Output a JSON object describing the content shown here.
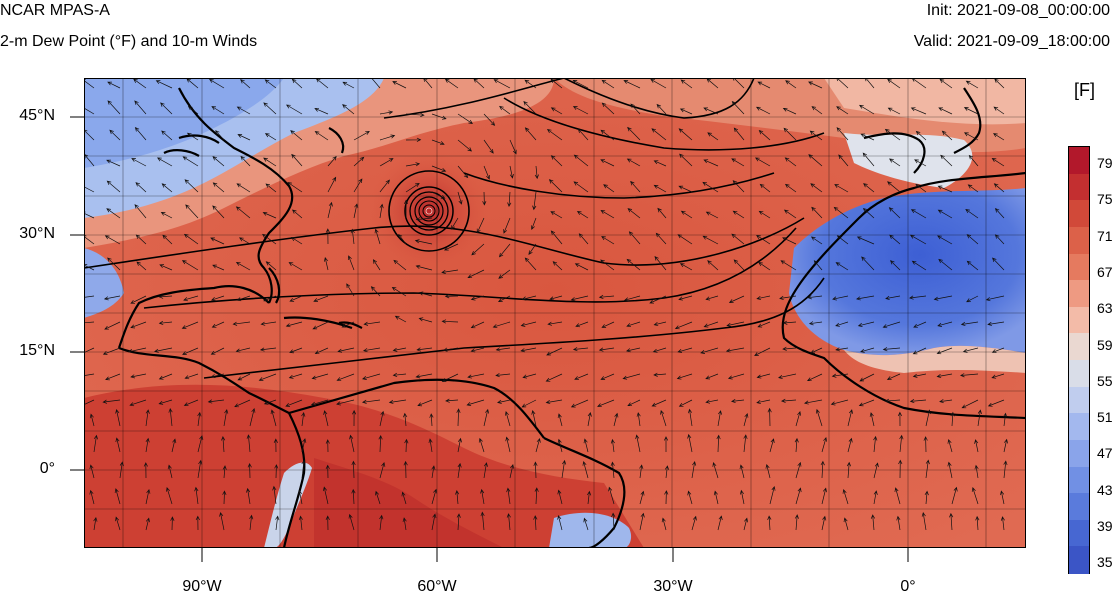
{
  "header": {
    "title": "NCAR MPAS-A",
    "subtitle": "2-m Dew Point (°F) and 10-m Winds",
    "init": "Init: 2021-09-08_00:00:00",
    "valid": "Valid: 2021-09-09_18:00:00"
  },
  "map": {
    "lat_labels": [
      "45°N",
      "30°N",
      "15°N",
      "0°"
    ],
    "lon_labels": [
      "90°W",
      "60°W",
      "30°W",
      "0°"
    ],
    "lon_range": [
      -105,
      15
    ],
    "lat_range": [
      -10,
      50
    ],
    "field_colors": {
      "ocean_warm": "#d8533f",
      "land_moist": "#c83a30",
      "dry_desert": "#4a6ad8",
      "cool_north": "#9fb8ee",
      "mid": "#ec9f86"
    }
  },
  "colorbar": {
    "units": "[F]",
    "labels": [
      "79",
      "75",
      "71",
      "67",
      "63",
      "59",
      "55",
      "51",
      "47",
      "43",
      "39",
      "35"
    ],
    "colors": [
      "#b2182b",
      "#c32f30",
      "#d14939",
      "#dc6149",
      "#e57a5f",
      "#ee9a82",
      "#f3bba8",
      "#ead8d1",
      "#d9dde8",
      "#c0cdee",
      "#a3b8ee",
      "#8aa4ea",
      "#7190e4",
      "#5a7bdc",
      "#4767d2",
      "#3b55c6"
    ]
  }
}
